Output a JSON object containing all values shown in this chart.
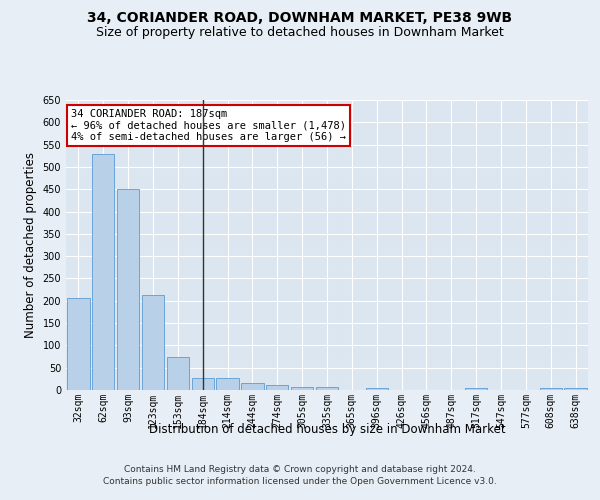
{
  "title1": "34, CORIANDER ROAD, DOWNHAM MARKET, PE38 9WB",
  "title2": "Size of property relative to detached houses in Downham Market",
  "xlabel": "Distribution of detached houses by size in Downham Market",
  "ylabel": "Number of detached properties",
  "categories": [
    "32sqm",
    "62sqm",
    "93sqm",
    "123sqm",
    "153sqm",
    "184sqm",
    "214sqm",
    "244sqm",
    "274sqm",
    "305sqm",
    "335sqm",
    "365sqm",
    "396sqm",
    "426sqm",
    "456sqm",
    "487sqm",
    "517sqm",
    "547sqm",
    "577sqm",
    "608sqm",
    "638sqm"
  ],
  "values": [
    207,
    530,
    451,
    212,
    75,
    27,
    26,
    15,
    12,
    7,
    7,
    0,
    5,
    0,
    0,
    0,
    4,
    0,
    0,
    4,
    4
  ],
  "bar_color": "#b8d0e8",
  "bar_edge_color": "#5b9bd5",
  "highlight_index": 5,
  "highlight_line_color": "#333333",
  "annotation_line1": "34 CORIANDER ROAD: 187sqm",
  "annotation_line2": "← 96% of detached houses are smaller (1,478)",
  "annotation_line3": "4% of semi-detached houses are larger (56) →",
  "annotation_box_color": "#ffffff",
  "annotation_box_edge": "#cc0000",
  "ylim": [
    0,
    650
  ],
  "yticks": [
    0,
    50,
    100,
    150,
    200,
    250,
    300,
    350,
    400,
    450,
    500,
    550,
    600,
    650
  ],
  "footer1": "Contains HM Land Registry data © Crown copyright and database right 2024.",
  "footer2": "Contains public sector information licensed under the Open Government Licence v3.0.",
  "bg_color": "#e8eef5",
  "plot_bg_color": "#dce6f1",
  "grid_color": "#ffffff",
  "title_fontsize": 10,
  "subtitle_fontsize": 9,
  "tick_fontsize": 7,
  "label_fontsize": 8.5,
  "footer_fontsize": 6.5
}
